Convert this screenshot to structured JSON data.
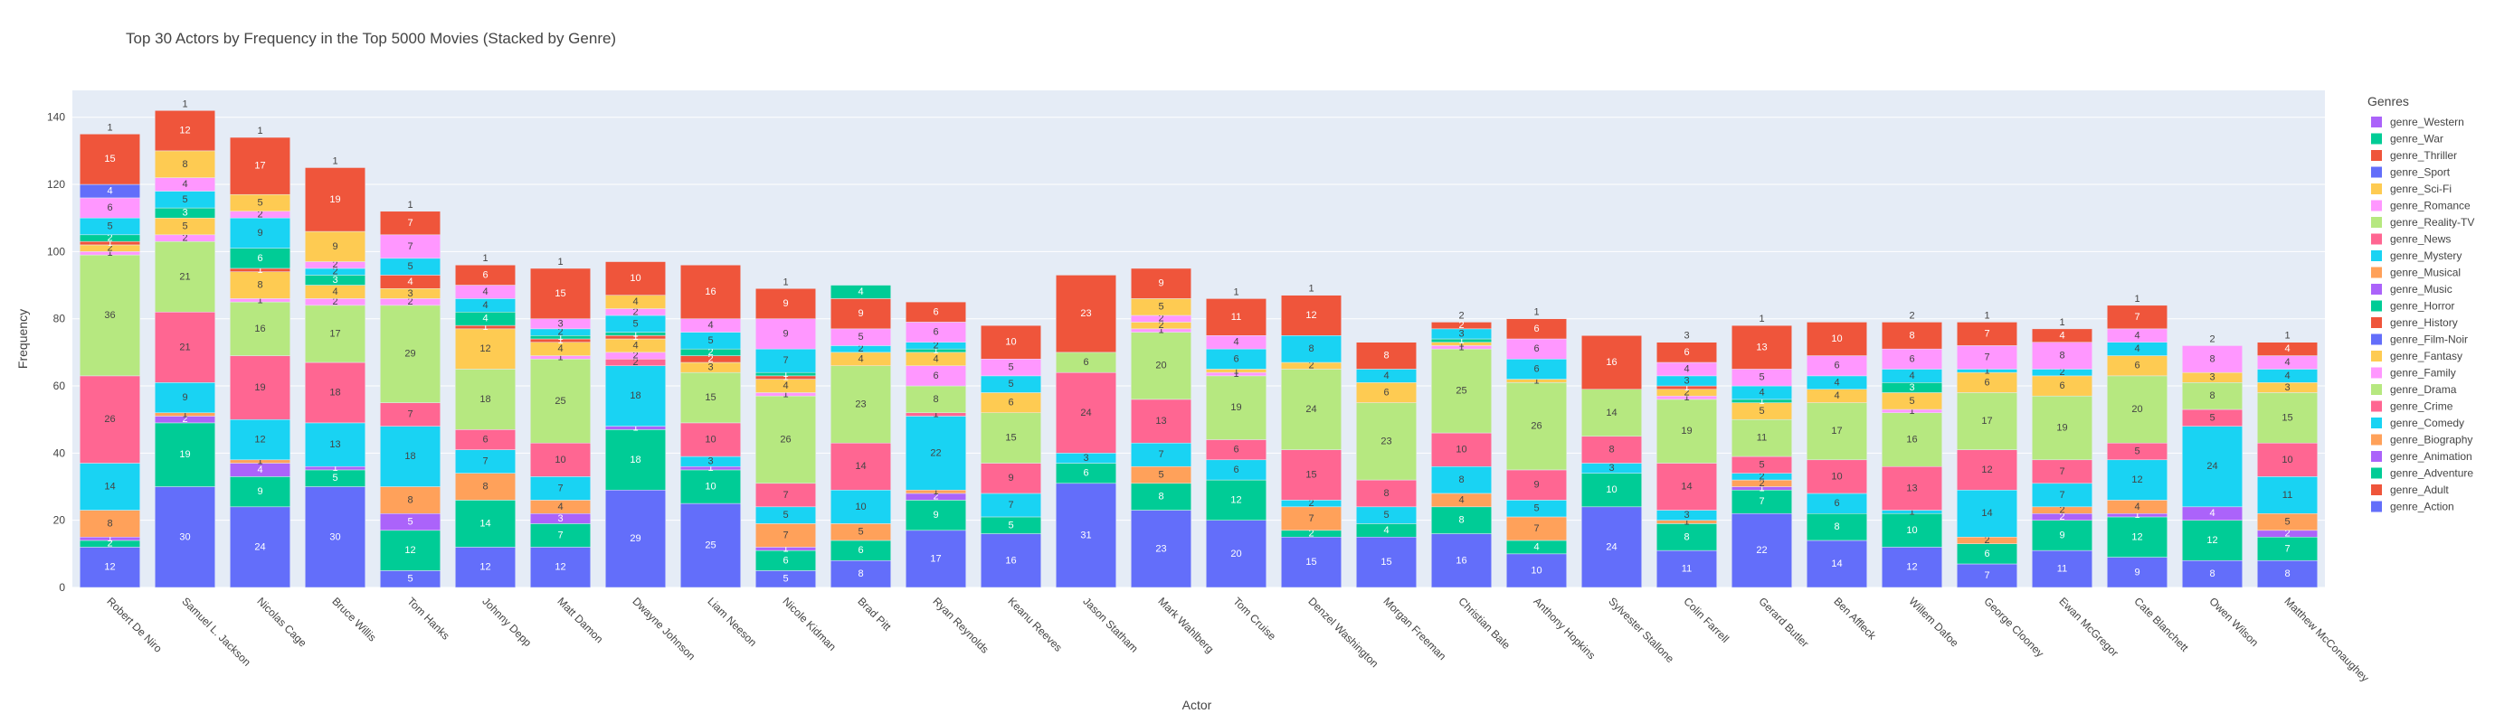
{
  "chart_data": {
    "type": "bar",
    "stacked": true,
    "title": "Top 30 Actors by Frequency in the Top 5000 Movies (Stacked by Genre)",
    "xlabel": "Actor",
    "ylabel": "Frequency",
    "ylim": [
      0,
      148
    ],
    "yticks": [
      0,
      20,
      40,
      60,
      80,
      100,
      120,
      140
    ],
    "grid": true,
    "legend_title": "Genres",
    "legend_position": "right",
    "categories": [
      "Robert De Niro",
      "Samuel L. Jackson",
      "Nicolas Cage",
      "Bruce Willis",
      "Tom Hanks",
      "Johnny Depp",
      "Matt Damon",
      "Dwayne Johnson",
      "Liam Neeson",
      "Nicole Kidman",
      "Brad Pitt",
      "Ryan Reynolds",
      "Keanu Reeves",
      "Jason Statham",
      "Mark Wahlberg",
      "Tom Cruise",
      "Denzel Washington",
      "Morgan Freeman",
      "Christian Bale",
      "Anthony Hopkins",
      "Sylvester Stallone",
      "Colin Farrell",
      "Gerard Butler",
      "Ben Affleck",
      "Willem Dafoe",
      "George Clooney",
      "Ewan McGregor",
      "Cate Blanchett",
      "Owen Wilson",
      "Matthew McConaughey"
    ],
    "series": [
      {
        "name": "genre_Action",
        "color": "#636efa",
        "values": [
          12,
          30,
          24,
          30,
          5,
          12,
          12,
          29,
          25,
          5,
          8,
          17,
          16,
          31,
          23,
          20,
          15,
          15,
          16,
          10,
          24,
          11,
          22,
          14,
          12,
          7,
          11,
          9,
          8,
          8
        ]
      },
      {
        "name": "genre_Adult",
        "color": "#EF553B",
        "values": [
          0,
          0,
          0,
          0,
          0,
          0,
          0,
          0,
          0,
          0,
          0,
          0,
          0,
          0,
          0,
          0,
          0,
          0,
          0,
          0,
          0,
          0,
          0,
          0,
          0,
          0,
          0,
          0,
          0,
          0
        ]
      },
      {
        "name": "genre_Adventure",
        "color": "#00cc96",
        "values": [
          2,
          19,
          9,
          5,
          12,
          14,
          7,
          18,
          10,
          6,
          6,
          9,
          5,
          6,
          8,
          12,
          2,
          4,
          8,
          4,
          10,
          8,
          7,
          8,
          10,
          6,
          9,
          12,
          12,
          7
        ]
      },
      {
        "name": "genre_Animation",
        "color": "#ab63fa",
        "values": [
          1,
          2,
          4,
          1,
          5,
          0,
          3,
          1,
          1,
          1,
          0,
          2,
          0,
          0,
          0,
          0,
          0,
          0,
          0,
          0,
          0,
          0,
          1,
          0,
          0,
          0,
          2,
          1,
          4,
          2
        ]
      },
      {
        "name": "genre_Biography",
        "color": "#FFA15A",
        "values": [
          8,
          1,
          1,
          0,
          8,
          8,
          4,
          0,
          0,
          7,
          5,
          1,
          0,
          0,
          5,
          0,
          7,
          0,
          4,
          7,
          0,
          1,
          2,
          0,
          0,
          2,
          2,
          4,
          0,
          5
        ]
      },
      {
        "name": "genre_Comedy",
        "color": "#19d3f3",
        "values": [
          14,
          9,
          12,
          13,
          18,
          7,
          7,
          18,
          3,
          5,
          10,
          22,
          7,
          3,
          7,
          6,
          2,
          5,
          8,
          5,
          3,
          3,
          2,
          6,
          1,
          14,
          7,
          12,
          24,
          11
        ]
      },
      {
        "name": "genre_Crime",
        "color": "#FF6692",
        "values": [
          26,
          21,
          19,
          18,
          7,
          6,
          10,
          2,
          10,
          7,
          14,
          1,
          9,
          24,
          13,
          6,
          15,
          8,
          10,
          9,
          8,
          14,
          5,
          10,
          13,
          12,
          7,
          5,
          5,
          10
        ]
      },
      {
        "name": "genre_Drama",
        "color": "#B6E880",
        "values": [
          36,
          21,
          16,
          17,
          29,
          18,
          25,
          0,
          15,
          26,
          23,
          8,
          15,
          6,
          20,
          19,
          24,
          23,
          25,
          26,
          14,
          19,
          11,
          17,
          16,
          17,
          19,
          20,
          8,
          15
        ]
      },
      {
        "name": "genre_Family",
        "color": "#FF97FF",
        "values": [
          1,
          2,
          1,
          2,
          2,
          0,
          1,
          2,
          0,
          1,
          0,
          6,
          0,
          0,
          1,
          1,
          0,
          0,
          1,
          0,
          0,
          1,
          0,
          0,
          1,
          0,
          0,
          0,
          0,
          0
        ]
      },
      {
        "name": "genre_Fantasy",
        "color": "#FECB52",
        "values": [
          2,
          5,
          8,
          4,
          3,
          12,
          4,
          4,
          3,
          4,
          4,
          4,
          6,
          0,
          2,
          1,
          2,
          6,
          1,
          1,
          0,
          2,
          5,
          4,
          5,
          6,
          6,
          6,
          3,
          3
        ]
      },
      {
        "name": "genre_Film-Noir",
        "color": "#636efa",
        "values": [
          0,
          0,
          0,
          0,
          0,
          0,
          0,
          0,
          0,
          0,
          0,
          0,
          0,
          0,
          0,
          0,
          0,
          0,
          0,
          0,
          0,
          0,
          0,
          0,
          0,
          0,
          0,
          0,
          0,
          0
        ]
      },
      {
        "name": "genre_History",
        "color": "#EF553B",
        "values": [
          1,
          0,
          1,
          0,
          4,
          1,
          1,
          1,
          2,
          1,
          0,
          0,
          0,
          0,
          0,
          0,
          0,
          0,
          0,
          0,
          0,
          1,
          0,
          0,
          0,
          0,
          0,
          0,
          0,
          0
        ]
      },
      {
        "name": "genre_Horror",
        "color": "#00cc96",
        "values": [
          2,
          3,
          6,
          3,
          0,
          4,
          1,
          1,
          2,
          1,
          0,
          1,
          0,
          0,
          0,
          0,
          0,
          0,
          1,
          0,
          0,
          0,
          1,
          0,
          3,
          0,
          0,
          0,
          0,
          0
        ]
      },
      {
        "name": "genre_Music",
        "color": "#ab63fa",
        "values": [
          0,
          0,
          0,
          0,
          0,
          0,
          0,
          0,
          0,
          0,
          0,
          0,
          0,
          0,
          0,
          0,
          0,
          0,
          0,
          0,
          0,
          0,
          0,
          0,
          0,
          0,
          0,
          0,
          0,
          0
        ]
      },
      {
        "name": "genre_Musical",
        "color": "#FFA15A",
        "values": [
          0,
          0,
          0,
          0,
          0,
          0,
          0,
          0,
          0,
          0,
          0,
          0,
          0,
          0,
          0,
          0,
          0,
          0,
          0,
          0,
          0,
          0,
          0,
          0,
          0,
          0,
          0,
          0,
          0,
          0
        ]
      },
      {
        "name": "genre_Mystery",
        "color": "#19d3f3",
        "values": [
          5,
          5,
          9,
          2,
          5,
          4,
          2,
          5,
          5,
          7,
          2,
          2,
          5,
          0,
          0,
          6,
          8,
          4,
          3,
          6,
          0,
          3,
          4,
          4,
          4,
          1,
          2,
          4,
          0,
          4
        ]
      },
      {
        "name": "genre_News",
        "color": "#FF6692",
        "values": [
          0,
          0,
          0,
          0,
          0,
          0,
          0,
          0,
          0,
          0,
          0,
          0,
          0,
          0,
          0,
          0,
          0,
          0,
          0,
          0,
          0,
          0,
          0,
          0,
          0,
          0,
          0,
          0,
          0,
          0
        ]
      },
      {
        "name": "genre_Reality-TV",
        "color": "#B6E880",
        "values": [
          0,
          0,
          0,
          0,
          0,
          0,
          0,
          0,
          0,
          0,
          0,
          0,
          0,
          0,
          0,
          0,
          0,
          0,
          0,
          0,
          0,
          0,
          0,
          0,
          0,
          0,
          0,
          0,
          0,
          0
        ]
      },
      {
        "name": "genre_Romance",
        "color": "#FF97FF",
        "values": [
          6,
          4,
          2,
          2,
          7,
          4,
          3,
          2,
          4,
          9,
          5,
          6,
          5,
          0,
          2,
          4,
          0,
          0,
          0,
          6,
          0,
          4,
          5,
          6,
          6,
          7,
          8,
          4,
          8,
          4
        ]
      },
      {
        "name": "genre_Sci-Fi",
        "color": "#FECB52",
        "values": [
          0,
          8,
          5,
          9,
          0,
          0,
          0,
          4,
          0,
          0,
          0,
          0,
          0,
          0,
          5,
          0,
          0,
          0,
          0,
          0,
          0,
          0,
          0,
          0,
          0,
          0,
          0,
          0,
          0,
          0
        ]
      },
      {
        "name": "genre_Sport",
        "color": "#636efa",
        "values": [
          4,
          0,
          0,
          0,
          0,
          0,
          0,
          0,
          0,
          0,
          0,
          0,
          0,
          0,
          0,
          0,
          0,
          0,
          0,
          0,
          0,
          0,
          0,
          0,
          0,
          0,
          0,
          0,
          0,
          0
        ]
      },
      {
        "name": "genre_Thriller",
        "color": "#EF553B",
        "values": [
          15,
          12,
          17,
          19,
          7,
          6,
          15,
          10,
          16,
          9,
          9,
          6,
          10,
          23,
          9,
          11,
          12,
          8,
          2,
          6,
          16,
          6,
          13,
          10,
          8,
          7,
          4,
          7,
          0,
          4
        ]
      },
      {
        "name": "genre_War",
        "color": "#00cc96",
        "values": [
          0,
          0,
          0,
          0,
          0,
          0,
          0,
          0,
          0,
          0,
          4,
          0,
          0,
          0,
          0,
          0,
          0,
          0,
          0,
          0,
          0,
          0,
          0,
          0,
          0,
          0,
          0,
          0,
          0,
          0
        ]
      },
      {
        "name": "genre_Western",
        "color": "#ab63fa",
        "values": [
          0,
          0,
          0,
          0,
          0,
          0,
          0,
          0,
          0,
          0,
          0,
          0,
          0,
          0,
          0,
          0,
          0,
          0,
          0,
          0,
          0,
          0,
          0,
          0,
          0,
          0,
          0,
          0,
          0,
          0
        ]
      }
    ],
    "top_labels": [
      "1",
      "1",
      "1",
      "1",
      "1",
      "1",
      "1",
      "",
      "",
      "1",
      "",
      "",
      "",
      "",
      "",
      "1",
      "1",
      "",
      "2",
      "1",
      "",
      "3",
      "1",
      "",
      "2",
      "1",
      "1",
      "1",
      "2",
      "1"
    ]
  }
}
